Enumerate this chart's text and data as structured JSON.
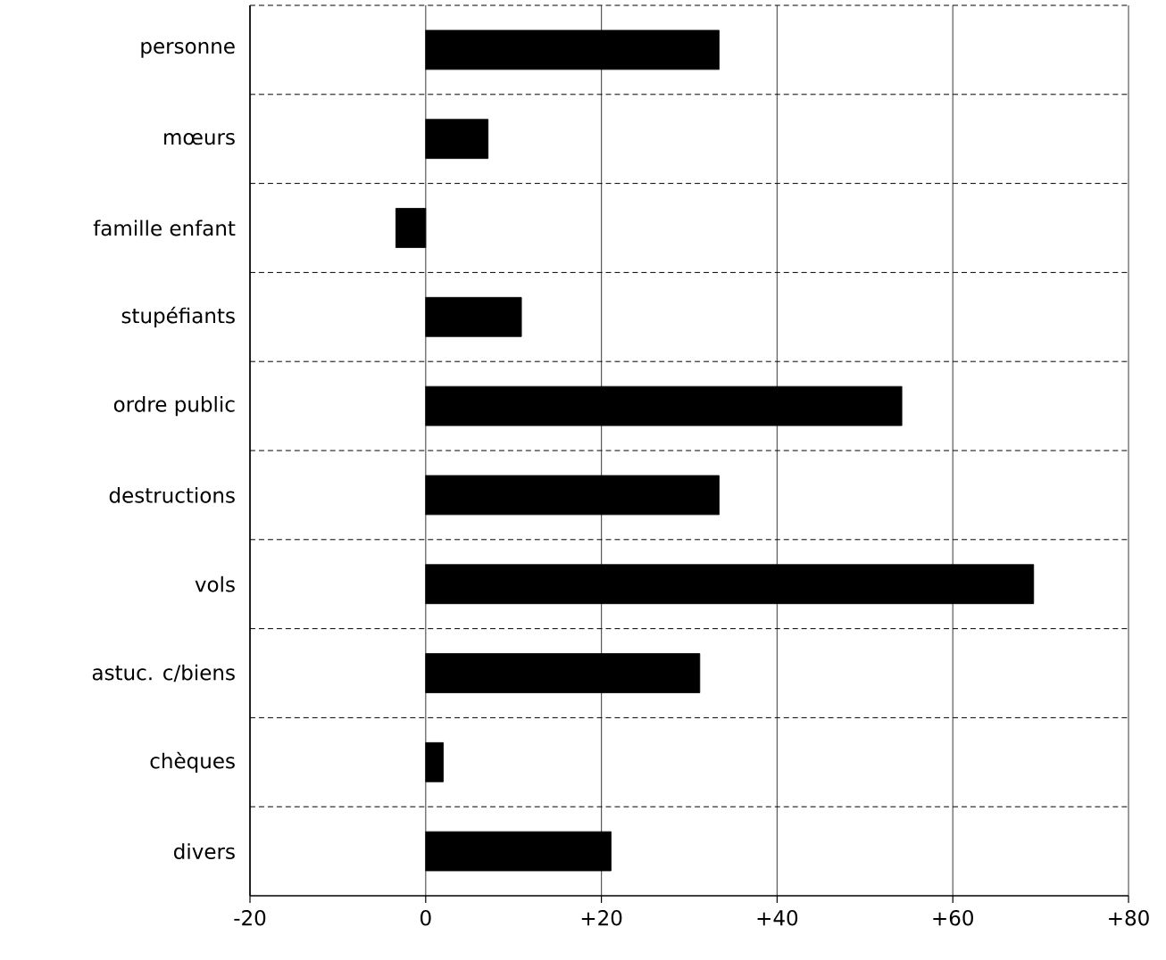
{
  "chart_data": {
    "type": "bar",
    "orientation": "horizontal",
    "categories": [
      "personne",
      "mœurs",
      "famille enfant",
      "stupéfiants",
      "ordre public",
      "destructions",
      "vols",
      "astuc. c/biens",
      "chèques",
      "divers"
    ],
    "values": [
      33.4,
      7.1,
      -3.4,
      10.9,
      54.2,
      33.4,
      69.2,
      31.2,
      2.0,
      21.1
    ],
    "color": "#000000",
    "xlim": [
      -20,
      80
    ],
    "xticks": [
      -20,
      0,
      {
        "value": 20,
        "label": "+20"
      },
      {
        "value": 40,
        "label": "+40"
      },
      {
        "value": 60,
        "label": "+60"
      },
      {
        "value": 80,
        "label": "+80"
      }
    ],
    "grid": true
  }
}
